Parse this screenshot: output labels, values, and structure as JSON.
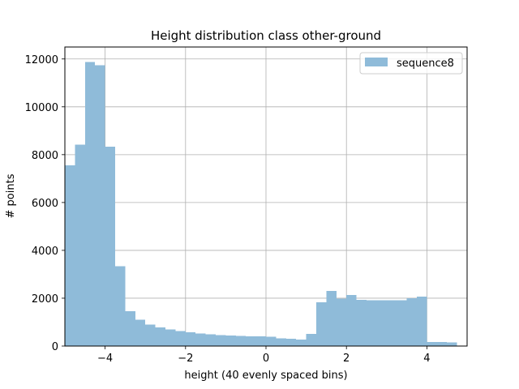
{
  "chart_data": {
    "type": "bar",
    "title": "Height distribution class other-ground",
    "xlabel": "height (40 evenly spaced bins)",
    "ylabel": "# points",
    "xlim": [
      -5,
      5
    ],
    "ylim": [
      0,
      12500
    ],
    "x_ticks": [
      -4,
      -2,
      0,
      2,
      4
    ],
    "x_tick_labels": [
      "−4",
      "−2",
      "0",
      "2",
      "4"
    ],
    "y_ticks": [
      0,
      2000,
      4000,
      6000,
      8000,
      10000,
      12000
    ],
    "y_tick_labels": [
      "0",
      "2000",
      "4000",
      "6000",
      "8000",
      "10000",
      "12000"
    ],
    "grid": true,
    "legend_position": "top-right",
    "bin_edges": [
      -5.0,
      -4.75,
      -4.5,
      -4.25,
      -4.0,
      -3.75,
      -3.5,
      -3.25,
      -3.0,
      -2.75,
      -2.5,
      -2.25,
      -2.0,
      -1.75,
      -1.5,
      -1.25,
      -1.0,
      -0.75,
      -0.5,
      -0.25,
      0.0,
      0.25,
      0.5,
      0.75,
      1.0,
      1.25,
      1.5,
      1.75,
      2.0,
      2.25,
      2.5,
      2.75,
      3.0,
      3.25,
      3.5,
      3.75,
      4.0,
      4.25,
      4.5,
      4.75,
      5.0
    ],
    "series": [
      {
        "name": "sequence8",
        "color": "#8fbbd9",
        "values": [
          7550,
          8420,
          11880,
          11740,
          8330,
          3340,
          1450,
          1100,
          900,
          780,
          700,
          620,
          570,
          530,
          490,
          450,
          440,
          430,
          400,
          400,
          390,
          330,
          300,
          270,
          510,
          1830,
          2300,
          1980,
          2130,
          1930,
          1920,
          1910,
          1910,
          1910,
          2000,
          2060,
          170,
          170,
          150,
          0
        ]
      }
    ]
  }
}
